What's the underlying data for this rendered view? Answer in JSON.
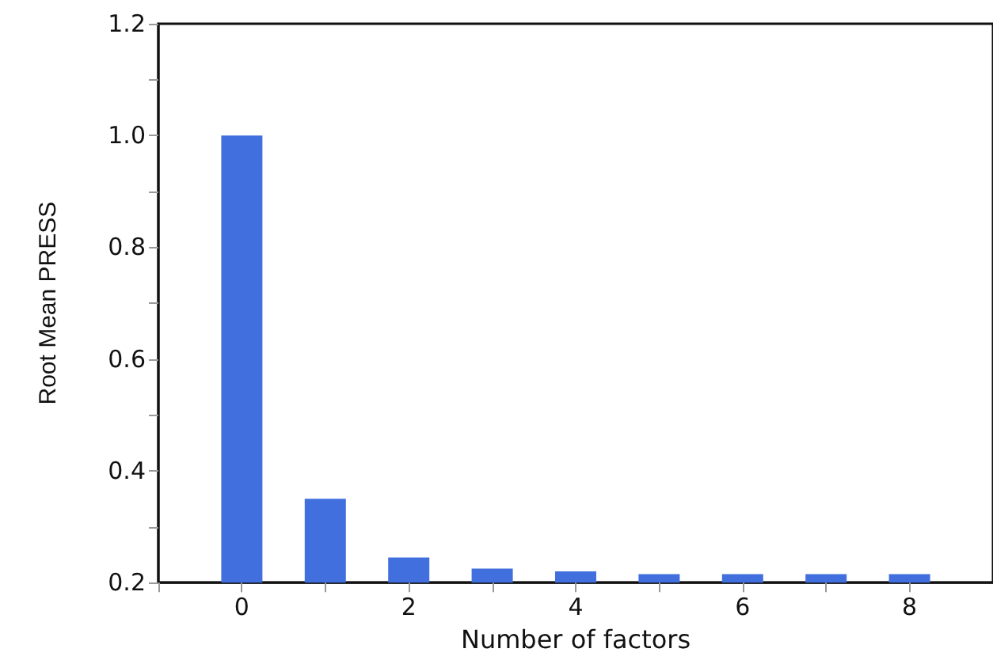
{
  "chart_data": {
    "type": "bar",
    "xlabel": "Number of factors",
    "ylabel": "Root Mean PRESS",
    "x": [
      0,
      1,
      2,
      3,
      4,
      5,
      6,
      7,
      8
    ],
    "values": [
      1.0,
      0.35,
      0.245,
      0.225,
      0.22,
      0.215,
      0.215,
      0.215,
      0.215
    ],
    "color": "#4170de",
    "xlim": [
      -1,
      9
    ],
    "xticks": [
      {
        "value": -1,
        "label": null
      },
      0,
      {
        "value": 1,
        "label": null
      },
      2,
      {
        "value": 3,
        "label": null
      },
      4,
      {
        "value": 5,
        "label": null
      },
      6,
      {
        "value": 7,
        "label": null
      },
      8
    ],
    "ylim": [
      0.2,
      1.2
    ],
    "yticks": [
      0.2,
      {
        "value": 0.3,
        "label": null
      },
      0.4,
      {
        "value": 0.5,
        "label": null
      },
      0.6,
      {
        "value": 0.7,
        "label": null
      },
      0.8,
      {
        "value": 0.9,
        "label": null
      },
      {
        "value": 1,
        "label": "1.0"
      },
      {
        "value": 1.1,
        "label": null
      },
      1.2
    ],
    "grid": false
  }
}
